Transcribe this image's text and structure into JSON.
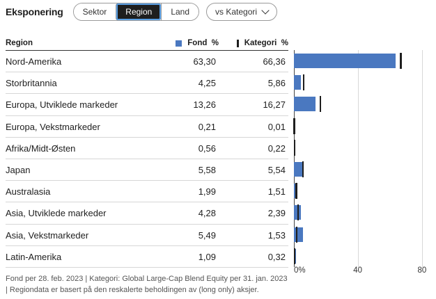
{
  "header": {
    "title": "Eksponering",
    "tabs": [
      "Sektor",
      "Region",
      "Land"
    ],
    "active_tab": 1,
    "dropdown_label": "vs Kategori"
  },
  "table": {
    "col_region": "Region",
    "col_fond": "Fond",
    "col_kat": "Kategori",
    "unit": "%",
    "rows": [
      {
        "region": "Nord-Amerika",
        "fond": "63,30",
        "kategori": "66,36"
      },
      {
        "region": "Storbritannia",
        "fond": "4,25",
        "kategori": "5,86"
      },
      {
        "region": "Europa, Utviklede markeder",
        "fond": "13,26",
        "kategori": "16,27"
      },
      {
        "region": "Europa, Vekstmarkeder",
        "fond": "0,21",
        "kategori": "0,01"
      },
      {
        "region": "Afrika/Midt-Østen",
        "fond": "0,56",
        "kategori": "0,22"
      },
      {
        "region": "Japan",
        "fond": "5,58",
        "kategori": "5,54"
      },
      {
        "region": "Australasia",
        "fond": "1,99",
        "kategori": "1,51"
      },
      {
        "region": "Asia, Utviklede markeder",
        "fond": "4,28",
        "kategori": "2,39"
      },
      {
        "region": "Asia, Vekstmarkeder",
        "fond": "5,49",
        "kategori": "1,53"
      },
      {
        "region": "Latin-Amerika",
        "fond": "1,09",
        "kategori": "0,32"
      }
    ]
  },
  "chart_data": {
    "type": "bar",
    "orientation": "horizontal",
    "categories": [
      "Nord-Amerika",
      "Storbritannia",
      "Europa, Utviklede markeder",
      "Europa, Vekstmarkeder",
      "Afrika/Midt-Østen",
      "Japan",
      "Australasia",
      "Asia, Utviklede markeder",
      "Asia, Vekstmarkeder",
      "Latin-Amerika"
    ],
    "series": [
      {
        "name": "Fond",
        "values": [
          63.3,
          4.25,
          13.26,
          0.21,
          0.56,
          5.58,
          1.99,
          4.28,
          5.49,
          1.09
        ],
        "color": "#4a78c0"
      },
      {
        "name": "Kategori",
        "values": [
          66.36,
          5.86,
          16.27,
          0.01,
          0.22,
          5.54,
          1.51,
          2.39,
          1.53,
          0.32
        ],
        "color": "#1e1e1e"
      }
    ],
    "xlim": [
      0,
      85
    ],
    "ticks": [
      0,
      40,
      80
    ],
    "tick_labels": [
      "0%",
      "40",
      "80"
    ],
    "grid": true
  },
  "footnote": "Fond per 28. feb. 2023 | Kategori: Global Large-Cap Blend Equity per 31. jan. 2023 | Regiondata er basert på den reskalerte beholdingen av (long only) aksjer."
}
